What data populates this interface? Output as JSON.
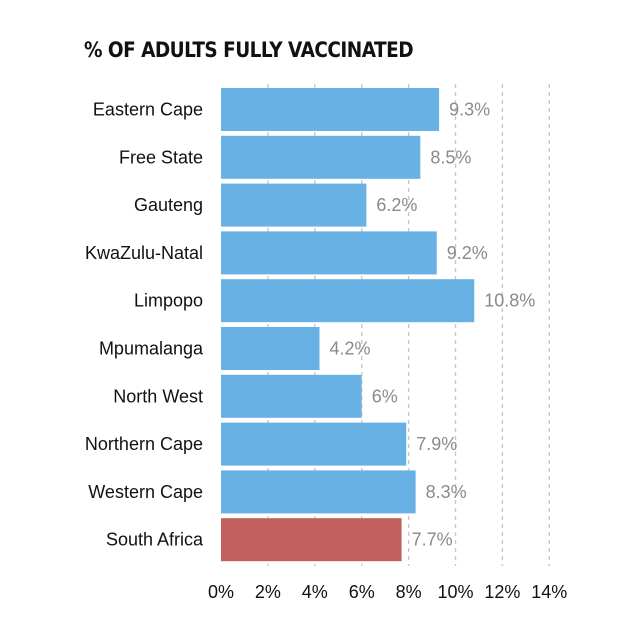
{
  "chart_data": {
    "type": "bar",
    "orientation": "horizontal",
    "title": "% OF ADULTS FULLY VACCINATED",
    "categories": [
      "Eastern Cape",
      "Free State",
      "Gauteng",
      "KwaZulu-Natal",
      "Limpopo",
      "Mpumalanga",
      "North West",
      "Northern Cape",
      "Western Cape",
      "South Africa"
    ],
    "values": [
      9.3,
      8.5,
      6.2,
      9.2,
      10.8,
      4.2,
      6,
      7.9,
      8.3,
      7.7
    ],
    "value_labels": [
      "9.3%",
      "8.5%",
      "6.2%",
      "9.2%",
      "10.8%",
      "4.2%",
      "6%",
      "7.9%",
      "8.3%",
      "7.7%"
    ],
    "xlim": [
      0,
      14
    ],
    "x_ticks": [
      0,
      2,
      4,
      6,
      8,
      10,
      12,
      14
    ],
    "x_tick_labels": [
      "0%",
      "2%",
      "4%",
      "6%",
      "8%",
      "10%",
      "12%",
      "14%"
    ],
    "grid": "vertical dashed",
    "colors": {
      "bar": "#68b1e4",
      "highlight": "#c0605e"
    },
    "highlight_category": "South Africa"
  }
}
